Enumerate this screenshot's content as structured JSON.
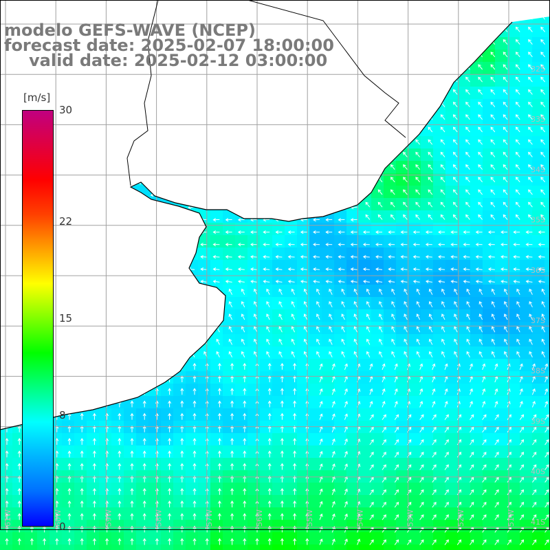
{
  "title": {
    "line1": "modelo GEFS-WAVE (NCEP)",
    "line2": "forecast date: 2025-02-07 18:00:00",
    "line3": "valid date: 2025-02-12 03:00:00"
  },
  "variable": "wind speed and direction",
  "colorbar": {
    "unit": "[m/s]",
    "min": 0,
    "max": 30,
    "ticks": [
      {
        "value": 30,
        "label": "30"
      },
      {
        "value": 22,
        "label": "22"
      },
      {
        "value": 15,
        "label": "15"
      },
      {
        "value": 8,
        "label": "8"
      },
      {
        "value": 0,
        "label": "0"
      }
    ],
    "colors": [
      "#0000ff",
      "#0070ff",
      "#00b4ff",
      "#00ffff",
      "#00ff80",
      "#00ff00",
      "#80ff00",
      "#ffff00",
      "#ffa000",
      "#ff4000",
      "#ff0000",
      "#e00040",
      "#c00080"
    ]
  },
  "map": {
    "latitude_labels": [
      "32S",
      "33S",
      "34S",
      "35S",
      "36S",
      "37S",
      "38S",
      "39S",
      "40S",
      "41S"
    ],
    "longitude_labels": [
      "61W",
      "60W",
      "59W",
      "58W",
      "57W",
      "56W",
      "55W",
      "54W",
      "53W",
      "52W",
      "51W"
    ],
    "land_color": "#ffffff",
    "grid_color": "#a0a0a0",
    "coast_color": "#000000"
  }
}
